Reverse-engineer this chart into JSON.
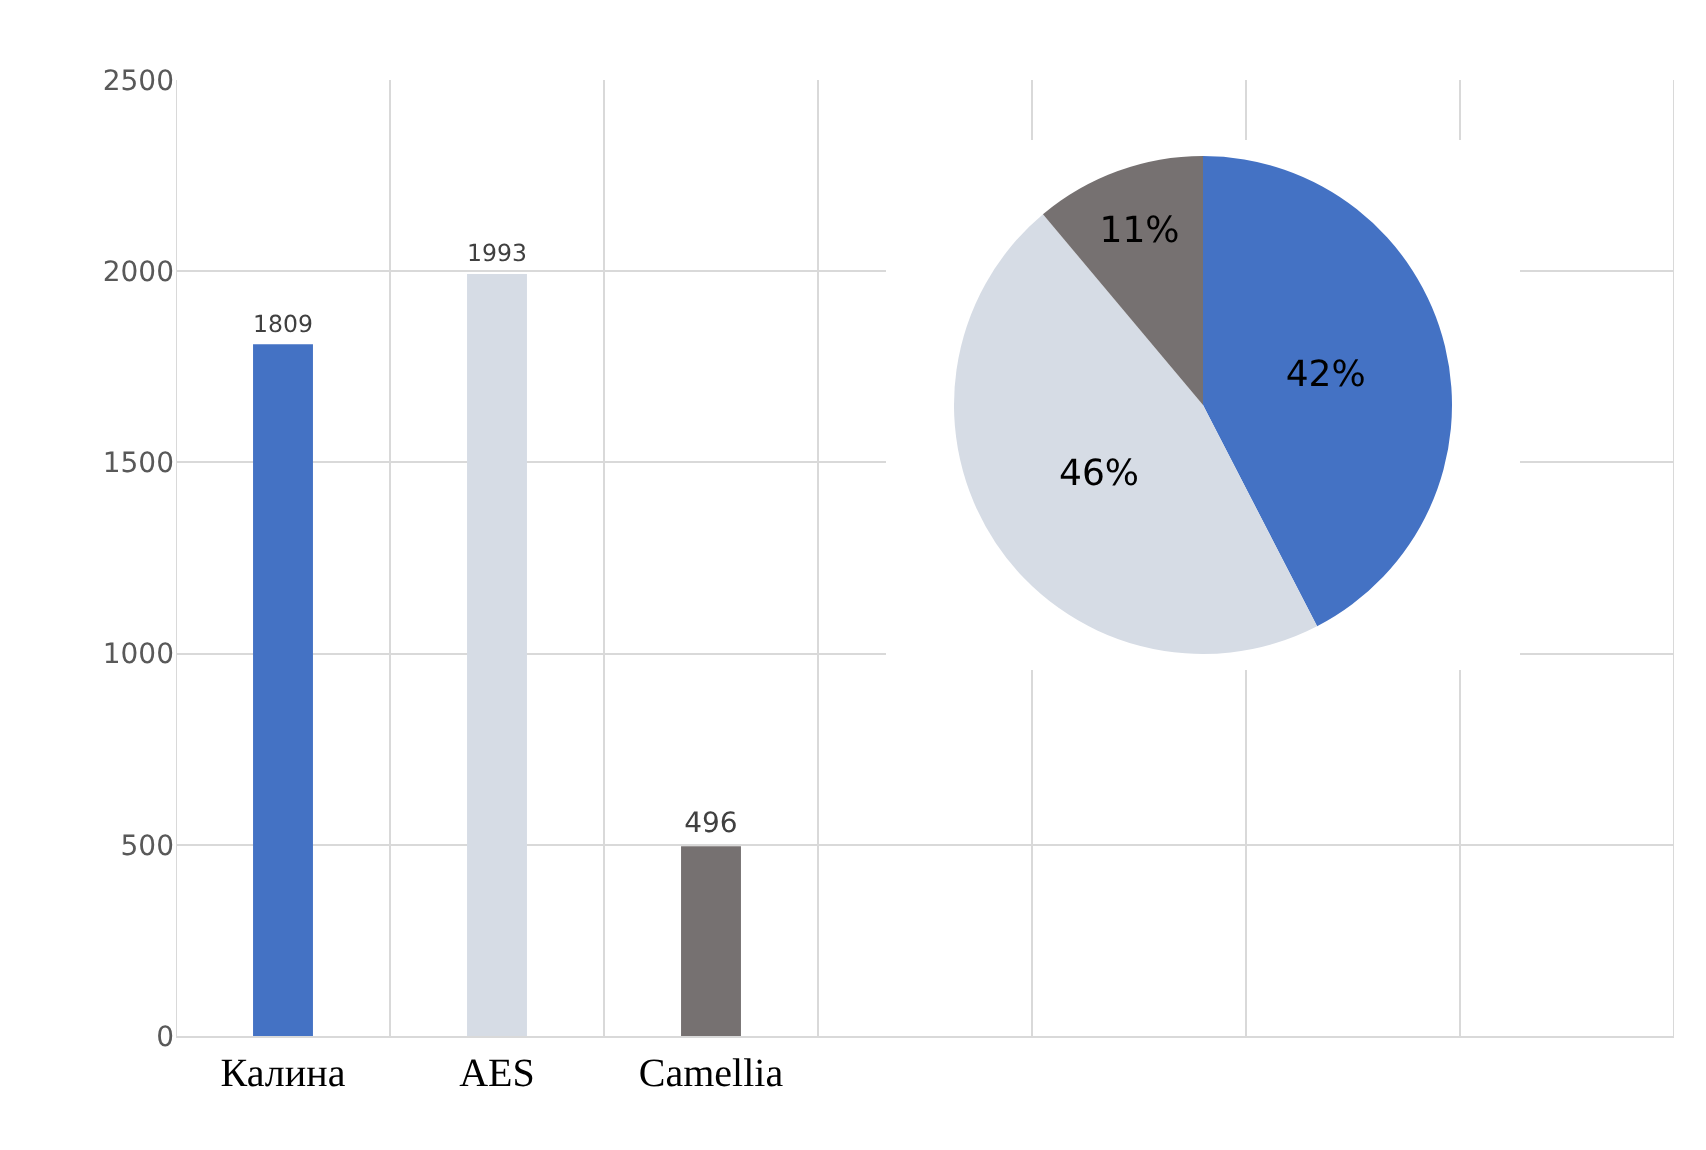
{
  "chart_data": [
    {
      "type": "bar",
      "categories": [
        "Калина",
        "AES",
        "Camellia",
        null,
        null,
        null,
        null
      ],
      "values": [
        1809,
        1993,
        496,
        null,
        null,
        null,
        null
      ],
      "colors": [
        "#4472c4",
        "#d6dce5",
        "#767171",
        null,
        null,
        null,
        null
      ],
      "ylim": [
        0,
        2500
      ],
      "yticks": [
        0,
        500,
        1000,
        1500,
        2000,
        2500
      ],
      "grid": true,
      "data_labels": true
    },
    {
      "type": "pie",
      "categories": [
        null,
        null,
        null
      ],
      "values": [
        42,
        46,
        11
      ],
      "value_labels": [
        "42%",
        "46%",
        "11%"
      ],
      "colors": [
        "#4472c4",
        "#d6dce5",
        "#767171"
      ]
    }
  ]
}
